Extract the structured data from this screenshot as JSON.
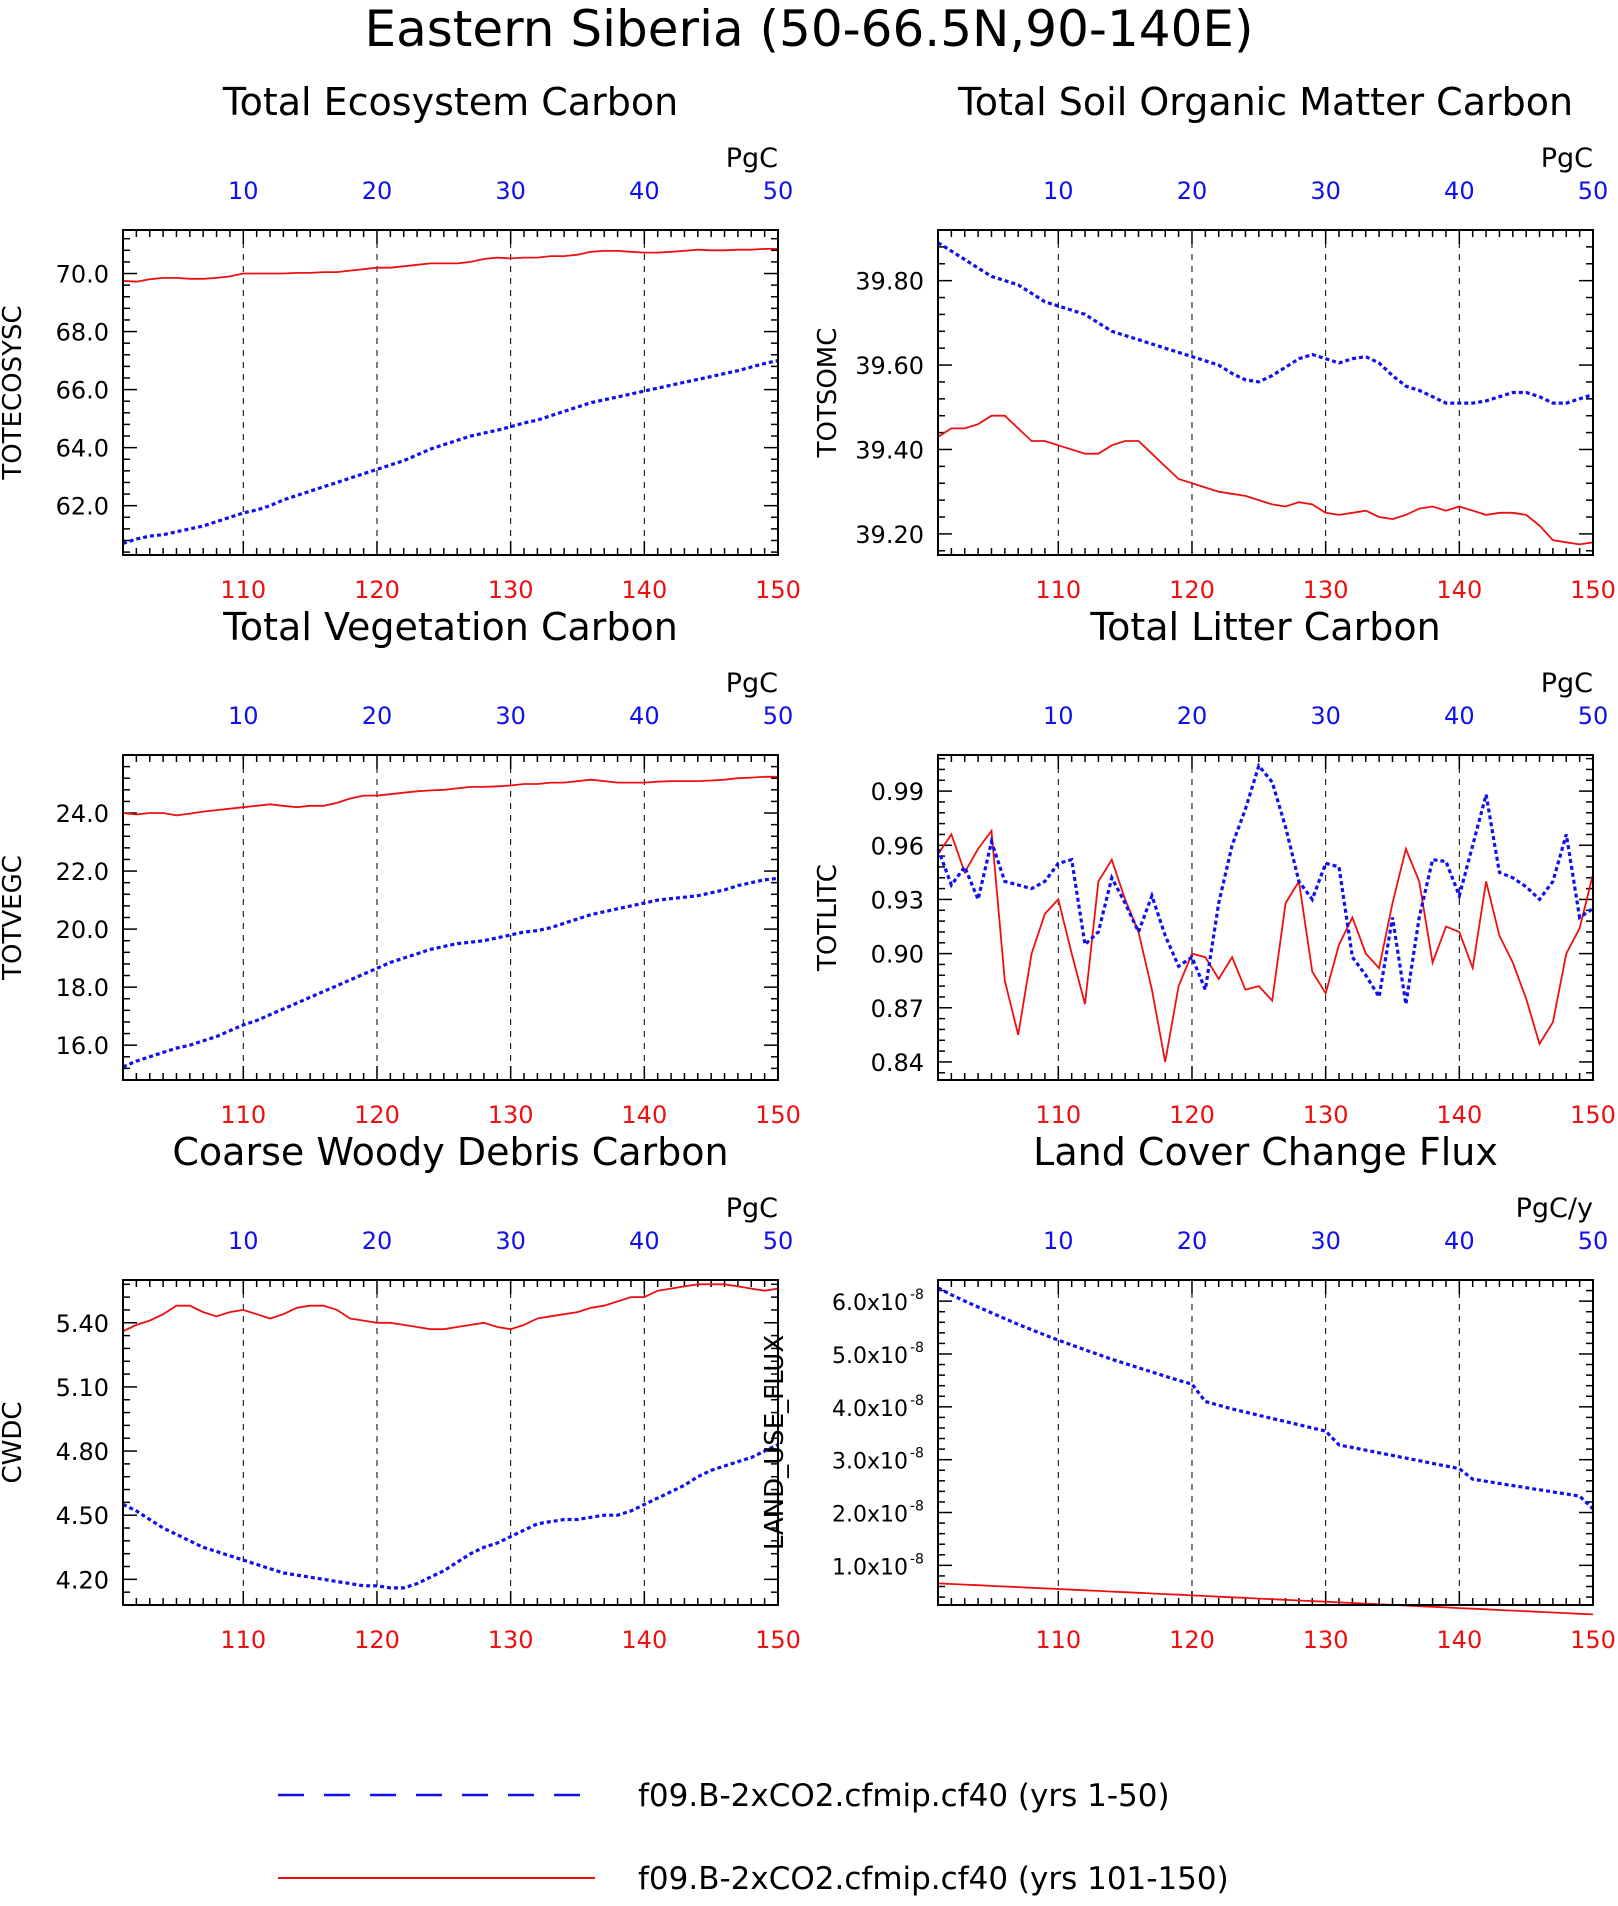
{
  "page_title": "Eastern Siberia (50-66.5N,90-140E)",
  "colors": {
    "series_1_50": "#1010ee",
    "series_101_150": "#ee1010",
    "frame": "#000000"
  },
  "legend": [
    {
      "label": "f09.B-2xCO2.cfmip.cf40 (yrs 1-50)",
      "style": "dashed",
      "color": "#1010ee"
    },
    {
      "label": "f09.B-2xCO2.cfmip.cf40 (yrs 101-150)",
      "style": "solid",
      "color": "#ee1010"
    }
  ],
  "chart_data": [
    {
      "type": "line",
      "title": "Total Ecosystem Carbon",
      "ylabel": "TOTECOSYSC",
      "units": "PgC",
      "ylim": [
        60.3,
        71.5
      ],
      "yticks": [
        62,
        64,
        66,
        68,
        70
      ],
      "ytick_labels": [
        "62.0",
        "64.0",
        "66.0",
        "68.0",
        "70.0"
      ],
      "bottom_axis": {
        "range": [
          101,
          150
        ],
        "ticks": [
          110,
          120,
          130,
          140,
          150
        ]
      },
      "top_axis": {
        "range": [
          1,
          50
        ],
        "ticks": [
          10,
          20,
          30,
          40,
          50
        ]
      },
      "grid": "vertical-dashed",
      "series": [
        {
          "values": [
            69.75,
            69.72,
            69.8,
            69.85,
            69.85,
            69.82,
            69.82,
            69.85,
            69.9,
            70.0,
            70.0,
            70.0,
            70.0,
            70.02,
            70.02,
            70.05,
            70.05,
            70.1,
            70.15,
            70.2,
            70.2,
            70.25,
            70.3,
            70.35,
            70.35,
            70.35,
            70.4,
            70.5,
            70.55,
            70.52,
            70.55,
            70.55,
            70.6,
            70.6,
            70.65,
            70.75,
            70.78,
            70.78,
            70.75,
            70.72,
            70.72,
            70.75,
            70.78,
            70.82,
            70.8,
            70.8,
            70.82,
            70.82,
            70.85,
            70.85
          ]
        },
        {
          "values": [
            60.7,
            60.85,
            60.95,
            61.0,
            61.1,
            61.2,
            61.3,
            61.45,
            61.6,
            61.75,
            61.85,
            62.0,
            62.2,
            62.35,
            62.5,
            62.65,
            62.8,
            62.95,
            63.1,
            63.25,
            63.4,
            63.55,
            63.75,
            63.95,
            64.1,
            64.25,
            64.4,
            64.5,
            64.6,
            64.72,
            64.85,
            64.95,
            65.1,
            65.25,
            65.4,
            65.55,
            65.65,
            65.75,
            65.85,
            65.95,
            66.05,
            66.15,
            66.25,
            66.35,
            66.45,
            66.55,
            66.65,
            66.78,
            66.9,
            67.0
          ]
        }
      ]
    },
    {
      "type": "line",
      "title": "Total Soil Organic Matter Carbon",
      "ylabel": "TOTSOMC",
      "units": "PgC",
      "ylim": [
        39.15,
        39.92
      ],
      "yticks": [
        39.2,
        39.4,
        39.6,
        39.8
      ],
      "ytick_labels": [
        "39.20",
        "39.40",
        "39.60",
        "39.80"
      ],
      "bottom_axis": {
        "range": [
          101,
          150
        ],
        "ticks": [
          110,
          120,
          130,
          140,
          150
        ]
      },
      "top_axis": {
        "range": [
          1,
          50
        ],
        "ticks": [
          10,
          20,
          30,
          40,
          50
        ]
      },
      "grid": "vertical-dashed",
      "series": [
        {
          "values": [
            39.43,
            39.45,
            39.45,
            39.46,
            39.48,
            39.48,
            39.45,
            39.42,
            39.42,
            39.41,
            39.4,
            39.39,
            39.39,
            39.41,
            39.42,
            39.42,
            39.39,
            39.36,
            39.33,
            39.32,
            39.31,
            39.3,
            39.295,
            39.29,
            39.28,
            39.27,
            39.265,
            39.275,
            39.27,
            39.25,
            39.245,
            39.25,
            39.255,
            39.24,
            39.235,
            39.245,
            39.26,
            39.265,
            39.255,
            39.265,
            39.255,
            39.245,
            39.25,
            39.25,
            39.245,
            39.22,
            39.185,
            39.18,
            39.175,
            39.18
          ]
        },
        {
          "values": [
            39.89,
            39.87,
            39.85,
            39.83,
            39.81,
            39.8,
            39.79,
            39.77,
            39.75,
            39.74,
            39.73,
            39.72,
            39.7,
            39.68,
            39.67,
            39.66,
            39.65,
            39.64,
            39.63,
            39.62,
            39.61,
            39.6,
            39.58,
            39.565,
            39.56,
            39.575,
            39.595,
            39.615,
            39.625,
            39.615,
            39.605,
            39.615,
            39.62,
            39.605,
            39.575,
            39.55,
            39.54,
            39.525,
            39.51,
            39.51,
            39.51,
            39.515,
            39.525,
            39.535,
            39.535,
            39.525,
            39.51,
            39.51,
            39.52,
            39.53
          ]
        }
      ]
    },
    {
      "type": "line",
      "title": "Total Vegetation Carbon",
      "ylabel": "TOTVEGC",
      "units": "PgC",
      "ylim": [
        14.8,
        26.0
      ],
      "yticks": [
        16,
        18,
        20,
        22,
        24
      ],
      "ytick_labels": [
        "16.0",
        "18.0",
        "20.0",
        "22.0",
        "24.0"
      ],
      "bottom_axis": {
        "range": [
          101,
          150
        ],
        "ticks": [
          110,
          120,
          130,
          140,
          150
        ]
      },
      "top_axis": {
        "range": [
          1,
          50
        ],
        "ticks": [
          10,
          20,
          30,
          40,
          50
        ]
      },
      "grid": "vertical-dashed",
      "series": [
        {
          "values": [
            24.0,
            23.95,
            24.0,
            24.0,
            23.92,
            23.98,
            24.05,
            24.1,
            24.15,
            24.2,
            24.25,
            24.3,
            24.25,
            24.2,
            24.25,
            24.25,
            24.35,
            24.5,
            24.6,
            24.6,
            24.65,
            24.7,
            24.75,
            24.78,
            24.8,
            24.85,
            24.9,
            24.9,
            24.92,
            24.95,
            25.0,
            25.0,
            25.05,
            25.05,
            25.1,
            25.15,
            25.1,
            25.05,
            25.05,
            25.05,
            25.08,
            25.1,
            25.1,
            25.1,
            25.12,
            25.15,
            25.2,
            25.22,
            25.25,
            25.25
          ]
        },
        {
          "values": [
            15.25,
            15.45,
            15.6,
            15.75,
            15.9,
            16.0,
            16.15,
            16.3,
            16.5,
            16.7,
            16.85,
            17.05,
            17.25,
            17.45,
            17.65,
            17.85,
            18.05,
            18.25,
            18.45,
            18.65,
            18.85,
            19.0,
            19.15,
            19.3,
            19.4,
            19.5,
            19.55,
            19.6,
            19.7,
            19.8,
            19.9,
            19.95,
            20.05,
            20.2,
            20.35,
            20.5,
            20.6,
            20.7,
            20.8,
            20.9,
            21.0,
            21.05,
            21.1,
            21.15,
            21.25,
            21.35,
            21.5,
            21.6,
            21.7,
            21.75
          ]
        }
      ]
    },
    {
      "type": "line",
      "title": "Total Litter Carbon",
      "ylabel": "TOTLITC",
      "units": "PgC",
      "ylim": [
        0.83,
        1.01
      ],
      "yticks": [
        0.84,
        0.87,
        0.9,
        0.93,
        0.96,
        0.99
      ],
      "ytick_labels": [
        "0.84",
        "0.87",
        "0.90",
        "0.93",
        "0.96",
        "0.99"
      ],
      "bottom_axis": {
        "range": [
          101,
          150
        ],
        "ticks": [
          110,
          120,
          130,
          140,
          150
        ]
      },
      "top_axis": {
        "range": [
          1,
          50
        ],
        "ticks": [
          10,
          20,
          30,
          40,
          50
        ]
      },
      "grid": "vertical-dashed",
      "series": [
        {
          "values": [
            0.955,
            0.966,
            0.945,
            0.958,
            0.968,
            0.885,
            0.855,
            0.9,
            0.922,
            0.93,
            0.9,
            0.872,
            0.94,
            0.952,
            0.93,
            0.912,
            0.88,
            0.84,
            0.882,
            0.9,
            0.898,
            0.886,
            0.898,
            0.88,
            0.882,
            0.874,
            0.928,
            0.94,
            0.89,
            0.878,
            0.905,
            0.92,
            0.9,
            0.892,
            0.928,
            0.958,
            0.94,
            0.895,
            0.915,
            0.912,
            0.892,
            0.94,
            0.91,
            0.895,
            0.875,
            0.85,
            0.862,
            0.9,
            0.914,
            0.944
          ]
        },
        {
          "values": [
            0.958,
            0.938,
            0.948,
            0.93,
            0.962,
            0.94,
            0.938,
            0.936,
            0.94,
            0.95,
            0.952,
            0.905,
            0.912,
            0.942,
            0.928,
            0.912,
            0.932,
            0.91,
            0.893,
            0.898,
            0.88,
            0.928,
            0.96,
            0.98,
            1.004,
            0.995,
            0.97,
            0.94,
            0.93,
            0.95,
            0.948,
            0.898,
            0.888,
            0.876,
            0.92,
            0.872,
            0.92,
            0.952,
            0.951,
            0.932,
            0.96,
            0.988,
            0.945,
            0.942,
            0.937,
            0.93,
            0.94,
            0.966,
            0.92,
            0.925
          ]
        }
      ]
    },
    {
      "type": "line",
      "title": "Coarse Woody Debris Carbon",
      "ylabel": "CWDC",
      "units": "PgC",
      "ylim": [
        4.08,
        5.6
      ],
      "yticks": [
        4.2,
        4.5,
        4.8,
        5.1,
        5.4
      ],
      "ytick_labels": [
        "4.20",
        "4.50",
        "4.80",
        "5.10",
        "5.40"
      ],
      "bottom_axis": {
        "range": [
          101,
          150
        ],
        "ticks": [
          110,
          120,
          130,
          140,
          150
        ]
      },
      "top_axis": {
        "range": [
          1,
          50
        ],
        "ticks": [
          10,
          20,
          30,
          40,
          50
        ]
      },
      "grid": "vertical-dashed",
      "series": [
        {
          "values": [
            5.36,
            5.39,
            5.41,
            5.44,
            5.48,
            5.48,
            5.45,
            5.43,
            5.45,
            5.46,
            5.44,
            5.42,
            5.44,
            5.47,
            5.48,
            5.48,
            5.46,
            5.42,
            5.41,
            5.4,
            5.4,
            5.39,
            5.38,
            5.37,
            5.37,
            5.38,
            5.39,
            5.4,
            5.38,
            5.37,
            5.39,
            5.42,
            5.43,
            5.44,
            5.45,
            5.47,
            5.48,
            5.5,
            5.52,
            5.52,
            5.55,
            5.56,
            5.57,
            5.58,
            5.58,
            5.58,
            5.57,
            5.56,
            5.55,
            5.56
          ]
        },
        {
          "values": [
            4.55,
            4.52,
            4.48,
            4.44,
            4.41,
            4.38,
            4.35,
            4.33,
            4.31,
            4.29,
            4.27,
            4.25,
            4.23,
            4.22,
            4.21,
            4.2,
            4.19,
            4.18,
            4.17,
            4.17,
            4.16,
            4.16,
            4.18,
            4.21,
            4.24,
            4.28,
            4.32,
            4.35,
            4.37,
            4.4,
            4.43,
            4.46,
            4.47,
            4.48,
            4.48,
            4.49,
            4.5,
            4.5,
            4.52,
            4.55,
            4.58,
            4.61,
            4.64,
            4.68,
            4.71,
            4.73,
            4.75,
            4.77,
            4.8,
            4.83
          ]
        }
      ]
    },
    {
      "type": "line",
      "title": "Land Cover Change Flux",
      "ylabel": "LAND_USE_FLUX",
      "units": "PgC/y",
      "ylim": [
        2.5e-09,
        6.4e-08
      ],
      "yticks": [
        1e-08,
        2e-08,
        3e-08,
        4e-08,
        5e-08,
        6e-08
      ],
      "ytick_labels": [
        "1.0x10",
        "2.0x10",
        "3.0x10",
        "4.0x10",
        "5.0x10",
        "6.0x10"
      ],
      "ytick_exponent": "-8",
      "bottom_axis": {
        "range": [
          101,
          150
        ],
        "ticks": [
          110,
          120,
          130,
          140,
          150
        ]
      },
      "top_axis": {
        "range": [
          1,
          50
        ],
        "ticks": [
          10,
          20,
          30,
          40,
          50
        ]
      },
      "grid": "vertical-dashed",
      "series": [
        {
          "values": [
            6.6e-09,
            6.48e-09,
            6.36e-09,
            6.24e-09,
            6.12e-09,
            6e-09,
            5.88e-09,
            5.76e-09,
            5.64e-09,
            5.52e-09,
            5.4e-09,
            5.28e-09,
            5.16e-09,
            5.04e-09,
            4.92e-09,
            4.8e-09,
            4.68e-09,
            4.56e-09,
            4.44e-09,
            4.32e-09,
            4.2e-09,
            4.08e-09,
            3.96e-09,
            3.84e-09,
            3.72e-09,
            3.6e-09,
            3.48e-09,
            3.36e-09,
            3.24e-09,
            3.12e-09,
            3e-09,
            2.88e-09,
            2.76e-09,
            2.64e-09,
            2.52e-09,
            2.4e-09,
            2.28e-09,
            2.16e-09,
            2.04e-09,
            1.92e-09,
            1.8e-09,
            1.68e-09,
            1.56e-09,
            1.44e-09,
            1.32e-09,
            1.2e-09,
            1.08e-09,
            9.6e-10,
            8.4e-10,
            7.2e-10
          ]
        },
        {
          "values": [
            6.25e-08,
            6.12e-08,
            6e-08,
            5.89e-08,
            5.78e-08,
            5.67e-08,
            5.56e-08,
            5.46e-08,
            5.36e-08,
            5.26e-08,
            5.17e-08,
            5.08e-08,
            4.99e-08,
            4.9e-08,
            4.82e-08,
            4.74e-08,
            4.66e-08,
            4.58e-08,
            4.5e-08,
            4.43e-08,
            4.1e-08,
            4.03e-08,
            3.96e-08,
            3.9e-08,
            3.84e-08,
            3.78e-08,
            3.72e-08,
            3.66e-08,
            3.6e-08,
            3.54e-08,
            3.28e-08,
            3.23e-08,
            3.18e-08,
            3.13e-08,
            3.08e-08,
            3.03e-08,
            2.98e-08,
            2.93e-08,
            2.88e-08,
            2.83e-08,
            2.63e-08,
            2.59e-08,
            2.55e-08,
            2.51e-08,
            2.47e-08,
            2.43e-08,
            2.39e-08,
            2.35e-08,
            2.31e-08,
            2.07e-08
          ]
        }
      ]
    }
  ]
}
